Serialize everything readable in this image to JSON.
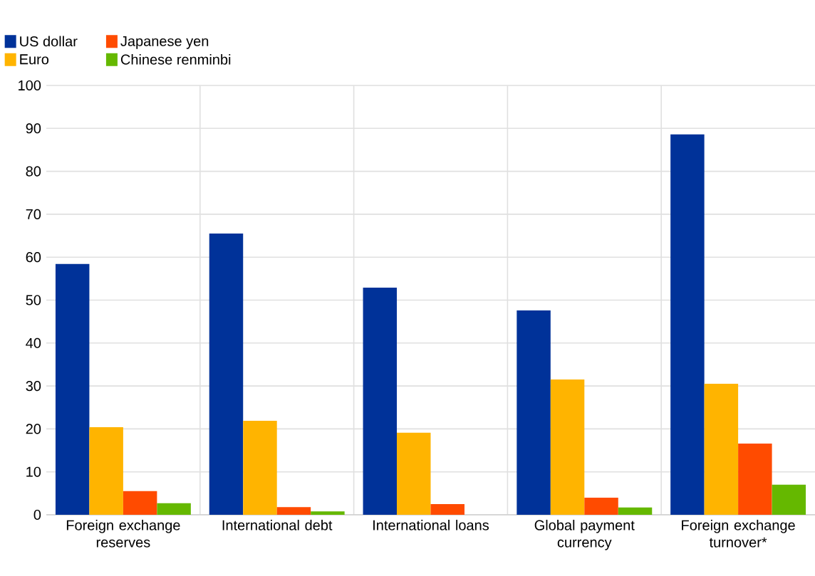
{
  "chart_data": {
    "type": "bar",
    "categories": [
      "Foreign exchange reserves",
      "International debt",
      "International loans",
      "Global payment currency",
      "Foreign exchange turnover*"
    ],
    "series": [
      {
        "name": "US dollar",
        "color": "#003299",
        "values": [
          58.4,
          65.5,
          52.9,
          47.6,
          88.6
        ]
      },
      {
        "name": "Euro",
        "color": "#ffb400",
        "values": [
          20.4,
          21.9,
          19.1,
          31.5,
          30.5
        ]
      },
      {
        "name": "Japanese yen",
        "color": "#ff4b00",
        "values": [
          5.5,
          1.8,
          2.5,
          4.0,
          16.6
        ]
      },
      {
        "name": "Chinese renminbi",
        "color": "#65b800",
        "values": [
          2.7,
          0.8,
          null,
          1.7,
          7.0
        ]
      }
    ],
    "ylim": [
      0,
      100
    ],
    "yticks": [
      0,
      10,
      20,
      30,
      40,
      50,
      60,
      70,
      80,
      90,
      100
    ],
    "grid": true,
    "legend": "top left"
  }
}
